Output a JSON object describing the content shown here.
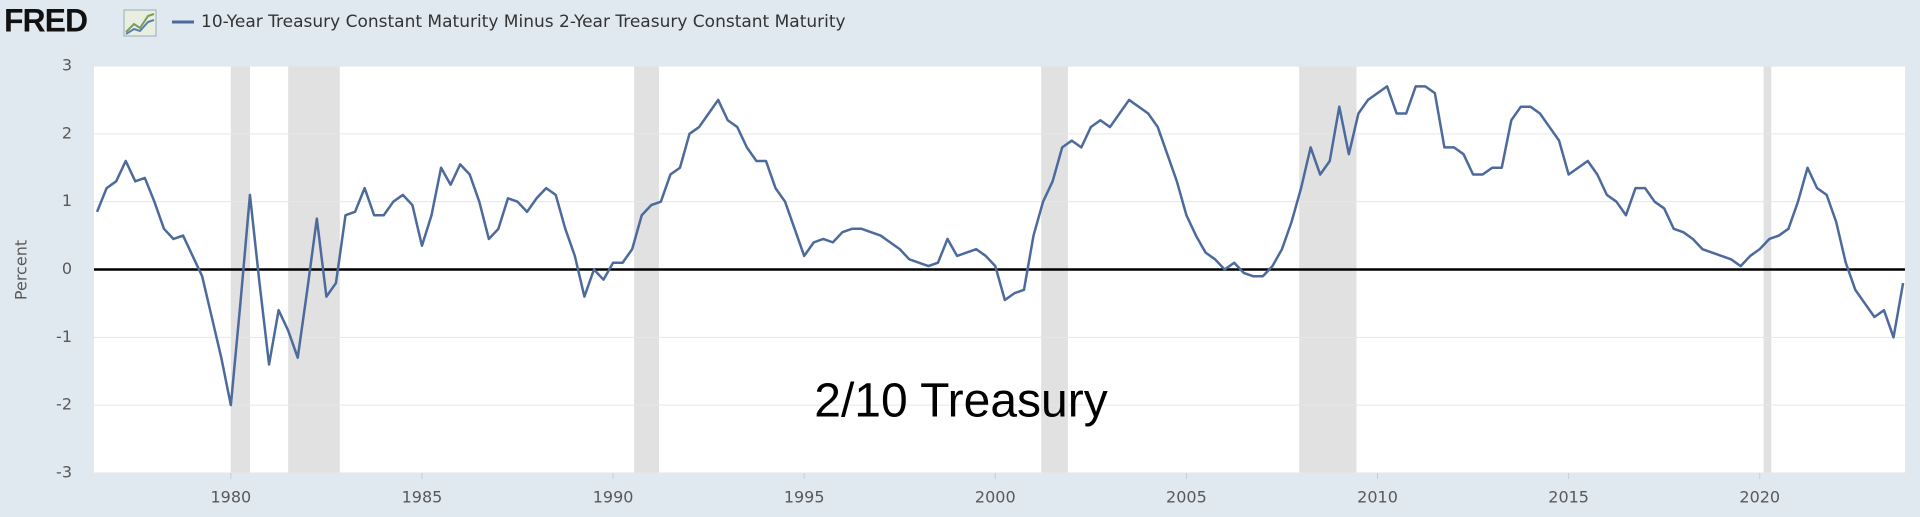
{
  "header": {
    "logo": "FRED"
  },
  "chart_data": {
    "type": "line",
    "annotation": "2/10 Treasury",
    "y_label": "Percent",
    "x": [
      1976.5,
      1976.75,
      1977,
      1977.25,
      1977.5,
      1977.75,
      1978,
      1978.25,
      1978.5,
      1978.75,
      1979,
      1979.25,
      1979.5,
      1979.75,
      1980,
      1980.25,
      1980.5,
      1980.75,
      1981,
      1981.25,
      1981.5,
      1981.75,
      1982,
      1982.25,
      1982.5,
      1982.75,
      1983,
      1983.25,
      1983.5,
      1983.75,
      1984,
      1984.25,
      1984.5,
      1984.75,
      1985,
      1985.25,
      1985.5,
      1985.75,
      1986,
      1986.25,
      1986.5,
      1986.75,
      1987,
      1987.25,
      1987.5,
      1987.75,
      1988,
      1988.25,
      1988.5,
      1988.75,
      1989,
      1989.25,
      1989.5,
      1989.75,
      1990,
      1990.25,
      1990.5,
      1990.75,
      1991,
      1991.25,
      1991.5,
      1991.75,
      1992,
      1992.25,
      1992.5,
      1992.75,
      1993,
      1993.25,
      1993.5,
      1993.75,
      1994,
      1994.25,
      1994.5,
      1994.75,
      1995,
      1995.25,
      1995.5,
      1995.75,
      1996,
      1996.25,
      1996.5,
      1996.75,
      1997,
      1997.25,
      1997.5,
      1997.75,
      1998,
      1998.25,
      1998.5,
      1998.75,
      1999,
      1999.25,
      1999.5,
      1999.75,
      2000,
      2000.25,
      2000.5,
      2000.75,
      2001,
      2001.25,
      2001.5,
      2001.75,
      2002,
      2002.25,
      2002.5,
      2002.75,
      2003,
      2003.25,
      2003.5,
      2003.75,
      2004,
      2004.25,
      2004.5,
      2004.75,
      2005,
      2005.25,
      2005.5,
      2005.75,
      2006,
      2006.25,
      2006.5,
      2006.75,
      2007,
      2007.25,
      2007.5,
      2007.75,
      2008,
      2008.25,
      2008.5,
      2008.75,
      2009,
      2009.25,
      2009.5,
      2009.75,
      2010,
      2010.25,
      2010.5,
      2010.75,
      2011,
      2011.25,
      2011.5,
      2011.75,
      2012,
      2012.25,
      2012.5,
      2012.75,
      2013,
      2013.25,
      2013.5,
      2013.75,
      2014,
      2014.25,
      2014.5,
      2014.75,
      2015,
      2015.25,
      2015.5,
      2015.75,
      2016,
      2016.25,
      2016.5,
      2016.75,
      2017,
      2017.25,
      2017.5,
      2017.75,
      2018,
      2018.25,
      2018.5,
      2018.75,
      2019,
      2019.25,
      2019.5,
      2019.75,
      2020,
      2020.25,
      2020.5,
      2020.75,
      2021,
      2021.25,
      2021.5,
      2021.75,
      2022,
      2022.25,
      2022.5,
      2022.75,
      2023,
      2023.25,
      2023.5,
      2023.75
    ],
    "series": [
      {
        "name": "10-Year Treasury Constant Maturity Minus 2-Year Treasury Constant Maturity",
        "color": "#4c6a9c",
        "values": [
          0.85,
          1.2,
          1.3,
          1.6,
          1.3,
          1.35,
          1.0,
          0.6,
          0.45,
          0.5,
          0.2,
          -0.1,
          -0.7,
          -1.3,
          -2.0,
          -0.5,
          1.1,
          -0.2,
          -1.4,
          -0.6,
          -0.9,
          -1.3,
          -0.3,
          0.75,
          -0.4,
          -0.2,
          0.8,
          0.85,
          1.2,
          0.8,
          0.8,
          1.0,
          1.1,
          0.95,
          0.35,
          0.8,
          1.5,
          1.25,
          1.55,
          1.4,
          1.0,
          0.45,
          0.6,
          1.05,
          1.0,
          0.85,
          1.05,
          1.2,
          1.1,
          0.6,
          0.2,
          -0.4,
          0.0,
          -0.15,
          0.1,
          0.1,
          0.3,
          0.8,
          0.95,
          1.0,
          1.4,
          1.5,
          2.0,
          2.1,
          2.3,
          2.5,
          2.2,
          2.1,
          1.8,
          1.6,
          1.6,
          1.2,
          1.0,
          0.6,
          0.2,
          0.4,
          0.45,
          0.4,
          0.55,
          0.6,
          0.6,
          0.55,
          0.5,
          0.4,
          0.3,
          0.15,
          0.1,
          0.05,
          0.1,
          0.45,
          0.2,
          0.25,
          0.3,
          0.2,
          0.05,
          -0.45,
          -0.35,
          -0.3,
          0.5,
          1.0,
          1.3,
          1.8,
          1.9,
          1.8,
          2.1,
          2.2,
          2.1,
          2.3,
          2.5,
          2.4,
          2.3,
          2.1,
          1.7,
          1.3,
          0.8,
          0.5,
          0.25,
          0.15,
          0.0,
          0.1,
          -0.05,
          -0.1,
          -0.1,
          0.05,
          0.3,
          0.7,
          1.2,
          1.8,
          1.4,
          1.6,
          2.4,
          1.7,
          2.3,
          2.5,
          2.6,
          2.7,
          2.3,
          2.3,
          2.7,
          2.7,
          2.6,
          1.8,
          1.8,
          1.7,
          1.4,
          1.4,
          1.5,
          1.5,
          2.2,
          2.4,
          2.4,
          2.3,
          2.1,
          1.9,
          1.4,
          1.5,
          1.6,
          1.4,
          1.1,
          1.0,
          0.8,
          1.2,
          1.2,
          1.0,
          0.9,
          0.6,
          0.55,
          0.45,
          0.3,
          0.25,
          0.2,
          0.15,
          0.05,
          0.2,
          0.3,
          0.45,
          0.5,
          0.6,
          1.0,
          1.5,
          1.2,
          1.1,
          0.7,
          0.1,
          -0.3,
          -0.5,
          -0.7,
          -0.6,
          -1.0,
          -0.2
        ]
      }
    ],
    "recessions": [
      [
        1980.0,
        1980.5
      ],
      [
        1981.5,
        1982.85
      ],
      [
        1990.55,
        1991.2
      ],
      [
        2001.2,
        2001.9
      ],
      [
        2007.95,
        2009.45
      ],
      [
        2020.1,
        2020.3
      ]
    ],
    "recession_color": "#e1e1e1",
    "xlim": [
      1976.42,
      2023.8
    ],
    "xticks": [
      1980,
      1985,
      1990,
      1995,
      2000,
      2005,
      2010,
      2015,
      2020
    ],
    "ylim": [
      -3,
      3
    ],
    "yticks": [
      3,
      2,
      1,
      0,
      -1,
      -2,
      -3
    ],
    "grid": true,
    "zero_line": true
  }
}
